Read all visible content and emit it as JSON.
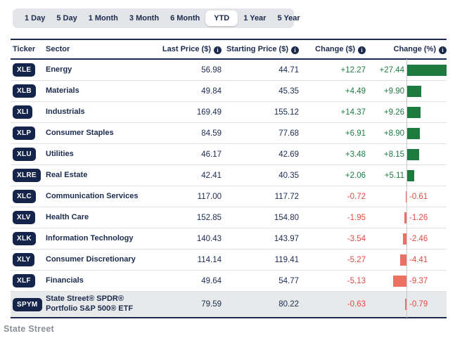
{
  "tabs": {
    "items": [
      {
        "label": "1 Day",
        "active": false
      },
      {
        "label": "5 Day",
        "active": false
      },
      {
        "label": "1 Month",
        "active": false
      },
      {
        "label": "3 Month",
        "active": false
      },
      {
        "label": "6 Month",
        "active": false
      },
      {
        "label": "YTD",
        "active": true
      },
      {
        "label": "1 Year",
        "active": false
      },
      {
        "label": "5 Year",
        "active": false
      }
    ]
  },
  "table": {
    "columns": {
      "ticker": "Ticker",
      "sector": "Sector",
      "last_price": "Last Price ($)",
      "starting_price": "Starting Price ($)",
      "change_dollar": "Change ($)",
      "change_percent": "Change (%)"
    },
    "info_icon_glyph": "i",
    "rows": [
      {
        "ticker": "XLE",
        "sector": "Energy",
        "last_price": "56.98",
        "starting_price": "44.71",
        "change_dollar": "+12.27",
        "change_percent": "+27.44",
        "highlight": false
      },
      {
        "ticker": "XLB",
        "sector": "Materials",
        "last_price": "49.84",
        "starting_price": "45.35",
        "change_dollar": "+4.49",
        "change_percent": "+9.90",
        "highlight": false
      },
      {
        "ticker": "XLI",
        "sector": "Industrials",
        "last_price": "169.49",
        "starting_price": "155.12",
        "change_dollar": "+14.37",
        "change_percent": "+9.26",
        "highlight": false
      },
      {
        "ticker": "XLP",
        "sector": "Consumer Staples",
        "last_price": "84.59",
        "starting_price": "77.68",
        "change_dollar": "+6.91",
        "change_percent": "+8.90",
        "highlight": false
      },
      {
        "ticker": "XLU",
        "sector": "Utilities",
        "last_price": "46.17",
        "starting_price": "42.69",
        "change_dollar": "+3.48",
        "change_percent": "+8.15",
        "highlight": false
      },
      {
        "ticker": "XLRE",
        "sector": "Real Estate",
        "last_price": "42.41",
        "starting_price": "40.35",
        "change_dollar": "+2.06",
        "change_percent": "+5.11",
        "highlight": false
      },
      {
        "ticker": "XLC",
        "sector": "Communication Services",
        "last_price": "117.00",
        "starting_price": "117.72",
        "change_dollar": "-0.72",
        "change_percent": "-0.61",
        "highlight": false
      },
      {
        "ticker": "XLV",
        "sector": "Health Care",
        "last_price": "152.85",
        "starting_price": "154.80",
        "change_dollar": "-1.95",
        "change_percent": "-1.26",
        "highlight": false
      },
      {
        "ticker": "XLK",
        "sector": "Information Technology",
        "last_price": "140.43",
        "starting_price": "143.97",
        "change_dollar": "-3.54",
        "change_percent": "-2.46",
        "highlight": false
      },
      {
        "ticker": "XLY",
        "sector": "Consumer Discretionary",
        "last_price": "114.14",
        "starting_price": "119.41",
        "change_dollar": "-5.27",
        "change_percent": "-4.41",
        "highlight": false
      },
      {
        "ticker": "XLF",
        "sector": "Financials",
        "last_price": "49.64",
        "starting_price": "54.77",
        "change_dollar": "-5.13",
        "change_percent": "-9.37",
        "highlight": false
      },
      {
        "ticker": "SPYM",
        "sector": "State Street® SPDR® Portfolio S&P 500® ETF",
        "last_price": "79.59",
        "starting_price": "80.22",
        "change_dollar": "-0.63",
        "change_percent": "-0.79",
        "highlight": true
      }
    ]
  },
  "colors": {
    "navy": "#1b2b4e",
    "positive_text": "#1e7b45",
    "negative_text": "#e14b42",
    "positive_bar": "#1e7a3e",
    "negative_bar": "#ee6f63",
    "highlight_row_bg": "#e8e9ea",
    "tabbar_bg": "#e3e5e9"
  },
  "footer": {
    "logo": "State Street"
  }
}
